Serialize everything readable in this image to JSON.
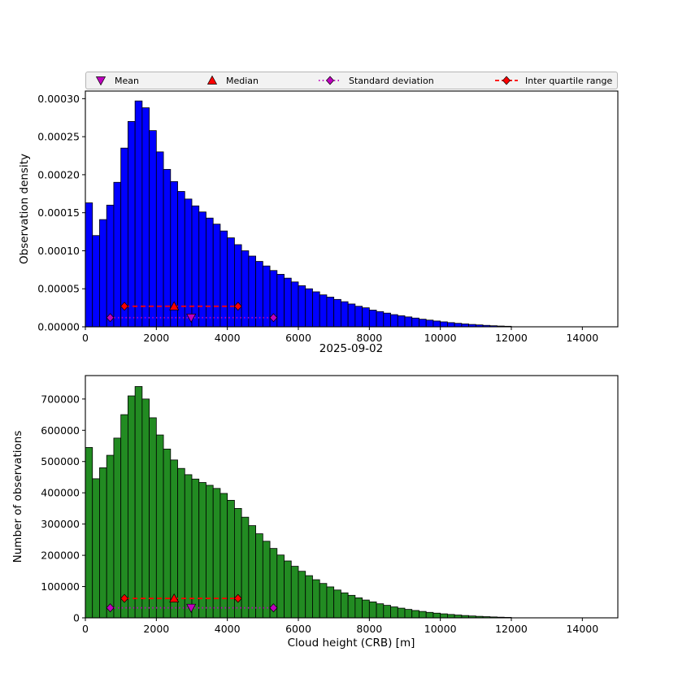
{
  "figure": {
    "background": "#ffffff",
    "top_xlabel": "2025-09-02",
    "bottom_xlabel": "Cloud height (CRB) [m]",
    "top_ylabel": "Observation density",
    "bottom_ylabel": "Number of observations"
  },
  "colors": {
    "top_bar": "#0000ff",
    "bottom_bar": "#228b22",
    "bar_edge": "#000000",
    "mean": "#bf00bf",
    "median": "#ff0000",
    "std": "#bf00bf",
    "iqr": "#ff0000",
    "legend_bg": "#f2f2f2",
    "legend_border": "#b5b5b5",
    "axes_edge": "#000000"
  },
  "legend": {
    "items": [
      {
        "label": "Mean",
        "marker": "triangle-down",
        "line": "none",
        "color": "#bf00bf"
      },
      {
        "label": "Median",
        "marker": "triangle-up",
        "line": "none",
        "color": "#ff0000"
      },
      {
        "label": "Standard deviation",
        "marker": "diamond",
        "line": "dotted",
        "color": "#bf00bf"
      },
      {
        "label": "Inter quartile range",
        "marker": "diamond",
        "line": "dashed",
        "color": "#ff0000"
      }
    ]
  },
  "chart_data": [
    {
      "type": "bar",
      "name": "observation-density-histogram",
      "xlabel": "2025-09-02",
      "ylabel": "Observation density",
      "bar_color": "#0000ff",
      "bin_start": 0,
      "bin_width": 200,
      "xlim": [
        0,
        15000
      ],
      "ylim": [
        0,
        0.00031
      ],
      "grid": false,
      "xticks": [
        0,
        2000,
        4000,
        6000,
        8000,
        10000,
        12000,
        14000
      ],
      "xtick_labels": [
        "0",
        "2000",
        "4000",
        "6000",
        "8000",
        "10000",
        "12000",
        "14000"
      ],
      "yticks": [
        0,
        5e-05,
        0.0001,
        0.00015,
        0.0002,
        0.00025,
        0.0003
      ],
      "ytick_labels": [
        "0.00000",
        "0.00005",
        "0.00010",
        "0.00015",
        "0.00020",
        "0.00025",
        "0.00030"
      ],
      "values": [
        0.000163,
        0.00012,
        0.000141,
        0.00016,
        0.00019,
        0.000235,
        0.00027,
        0.000297,
        0.000288,
        0.000258,
        0.00023,
        0.000207,
        0.000191,
        0.000178,
        0.000168,
        0.000159,
        0.000151,
        0.000143,
        0.000135,
        0.000126,
        0.000117,
        0.000108,
        0.0001,
        9.3e-05,
        8.6e-05,
        8e-05,
        7.4e-05,
        6.9e-05,
        6.4e-05,
        5.9e-05,
        5.4e-05,
        5e-05,
        4.6e-05,
        4.2e-05,
        3.9e-05,
        3.6e-05,
        3.3e-05,
        3e-05,
        2.7e-05,
        2.5e-05,
        2.2e-05,
        2e-05,
        1.8e-05,
        1.6e-05,
        1.45e-05,
        1.3e-05,
        1.15e-05,
        1e-05,
        8.8e-06,
        7.6e-06,
        6.5e-06,
        5.5e-06,
        4.6e-06,
        3.8e-06,
        3.1e-06,
        2.5e-06,
        1.9e-06,
        1.4e-06,
        1e-06,
        7e-07
      ],
      "stats": {
        "mean": 2980,
        "median": 2500,
        "std_range": [
          700,
          5300
        ],
        "std_y": 1.2e-05,
        "iqr_range": [
          1100,
          4300
        ],
        "iqr_y": 2.7e-05
      }
    },
    {
      "type": "bar",
      "name": "observation-count-histogram",
      "xlabel": "Cloud height (CRB) [m]",
      "ylabel": "Number of observations",
      "bar_color": "#228b22",
      "bin_start": 0,
      "bin_width": 200,
      "xlim": [
        0,
        15000
      ],
      "ylim": [
        0,
        775000
      ],
      "grid": false,
      "xticks": [
        0,
        2000,
        4000,
        6000,
        8000,
        10000,
        12000,
        14000
      ],
      "xtick_labels": [
        "0",
        "2000",
        "4000",
        "6000",
        "8000",
        "10000",
        "12000",
        "14000"
      ],
      "yticks": [
        0,
        100000,
        200000,
        300000,
        400000,
        500000,
        600000,
        700000
      ],
      "ytick_labels": [
        "0",
        "100000",
        "200000",
        "300000",
        "400000",
        "500000",
        "600000",
        "700000"
      ],
      "values": [
        545000,
        445000,
        480000,
        520000,
        575000,
        650000,
        710000,
        740000,
        700000,
        640000,
        585000,
        540000,
        505000,
        478000,
        458000,
        444000,
        433000,
        424000,
        414000,
        398000,
        376000,
        350000,
        322000,
        295000,
        269000,
        245000,
        222000,
        201000,
        182000,
        165000,
        149000,
        135000,
        122000,
        110000,
        99000,
        89000,
        80000,
        72000,
        64000,
        57000,
        51000,
        45000,
        40000,
        35000,
        31000,
        27000,
        23500,
        20500,
        17500,
        15000,
        12800,
        10800,
        9000,
        7400,
        6000,
        4800,
        3800,
        2900,
        2100,
        1500
      ],
      "stats": {
        "mean": 2980,
        "median": 2500,
        "std_range": [
          700,
          5300
        ],
        "std_y": 32000,
        "iqr_range": [
          1100,
          4300
        ],
        "iqr_y": 62000
      }
    }
  ]
}
